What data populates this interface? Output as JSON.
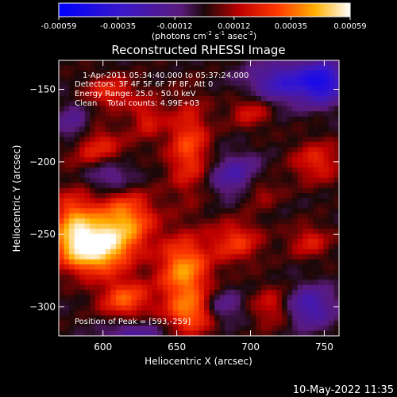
{
  "chart_data": {
    "type": "heatmap",
    "title": "Reconstructed RHESSI Image",
    "xlabel": "Heliocentric X (arcsec)",
    "ylabel": "Heliocentric Y (arcsec)",
    "xlim": [
      570,
      760
    ],
    "ylim": [
      -320,
      -130
    ],
    "x_ticks": [
      600,
      650,
      700,
      750
    ],
    "y_ticks": [
      -150,
      -200,
      -250,
      -300
    ],
    "colorbar": {
      "range": [
        -0.00059,
        0.00059
      ],
      "tick_values": [
        -0.00059,
        -0.00035,
        -0.00012,
        0.00012,
        0.00035,
        0.00059
      ],
      "tick_labels": [
        "-0.00059",
        "-0.00035",
        "-0.00012",
        "0.00012",
        "0.00035",
        "0.00059"
      ],
      "label_parts": [
        "(photons cm",
        "-2",
        " s",
        "-1",
        " asec",
        "-2",
        ")"
      ]
    },
    "annotations": [
      "1-Apr-2011 05:34:40.000 to 05:37:24.000",
      "Detectors: 3F 4F 5F 6F 7F 8F, Att 0",
      "Energy Range: 25.0 - 50.0 keV",
      "Clean    Total counts: 4.99E+03"
    ],
    "peak_label": "Position of Peak = [593,-259]",
    "peak": {
      "x": 593,
      "y": -259
    },
    "sources": [
      {
        "x": 593,
        "y": -259,
        "sx": 16,
        "sy": 12,
        "amp": 1.0
      },
      {
        "x": 615,
        "y": -240,
        "sx": 14,
        "sy": 14,
        "amp": 0.6
      },
      {
        "x": 580,
        "y": -240,
        "sx": 10,
        "sy": 14,
        "amp": 0.5
      },
      {
        "x": 615,
        "y": -295,
        "sx": 12,
        "sy": 10,
        "amp": 0.5
      },
      {
        "x": 655,
        "y": -275,
        "sx": 12,
        "sy": 16,
        "amp": 0.65
      },
      {
        "x": 660,
        "y": -305,
        "sx": 12,
        "sy": 10,
        "amp": 0.5
      },
      {
        "x": 658,
        "y": -190,
        "sx": 10,
        "sy": 22,
        "amp": 0.45
      },
      {
        "x": 595,
        "y": -190,
        "sx": 14,
        "sy": 10,
        "amp": 0.35
      },
      {
        "x": 605,
        "y": -152,
        "sx": 12,
        "sy": 8,
        "amp": 0.35
      },
      {
        "x": 690,
        "y": -255,
        "sx": 12,
        "sy": 10,
        "amp": 0.4
      },
      {
        "x": 700,
        "y": -165,
        "sx": 10,
        "sy": 8,
        "amp": 0.3
      },
      {
        "x": 745,
        "y": -200,
        "sx": 12,
        "sy": 10,
        "amp": 0.35
      },
      {
        "x": 740,
        "y": -255,
        "sx": 10,
        "sy": 8,
        "amp": 0.3
      },
      {
        "x": 715,
        "y": -300,
        "sx": 10,
        "sy": 10,
        "amp": 0.3
      },
      {
        "x": 705,
        "y": -220,
        "sx": 10,
        "sy": 8,
        "amp": 0.25
      },
      {
        "x": 630,
        "y": -170,
        "sx": 8,
        "sy": 10,
        "amp": 0.3
      },
      {
        "x": 725,
        "y": -145,
        "sx": 18,
        "sy": 10,
        "amp": -0.55
      },
      {
        "x": 750,
        "y": -145,
        "sx": 10,
        "sy": 10,
        "amp": -0.6
      },
      {
        "x": 690,
        "y": -210,
        "sx": 12,
        "sy": 10,
        "amp": -0.4
      },
      {
        "x": 605,
        "y": -210,
        "sx": 12,
        "sy": 8,
        "amp": -0.3
      },
      {
        "x": 620,
        "y": -320,
        "sx": 14,
        "sy": 8,
        "amp": -0.35
      },
      {
        "x": 740,
        "y": -300,
        "sx": 12,
        "sy": 10,
        "amp": -0.45
      },
      {
        "x": 580,
        "y": -175,
        "sx": 8,
        "sy": 10,
        "amp": -0.3
      },
      {
        "x": 680,
        "y": -300,
        "sx": 10,
        "sy": 8,
        "amp": -0.3
      }
    ]
  },
  "timestamp": "10-May-2022 11:35"
}
